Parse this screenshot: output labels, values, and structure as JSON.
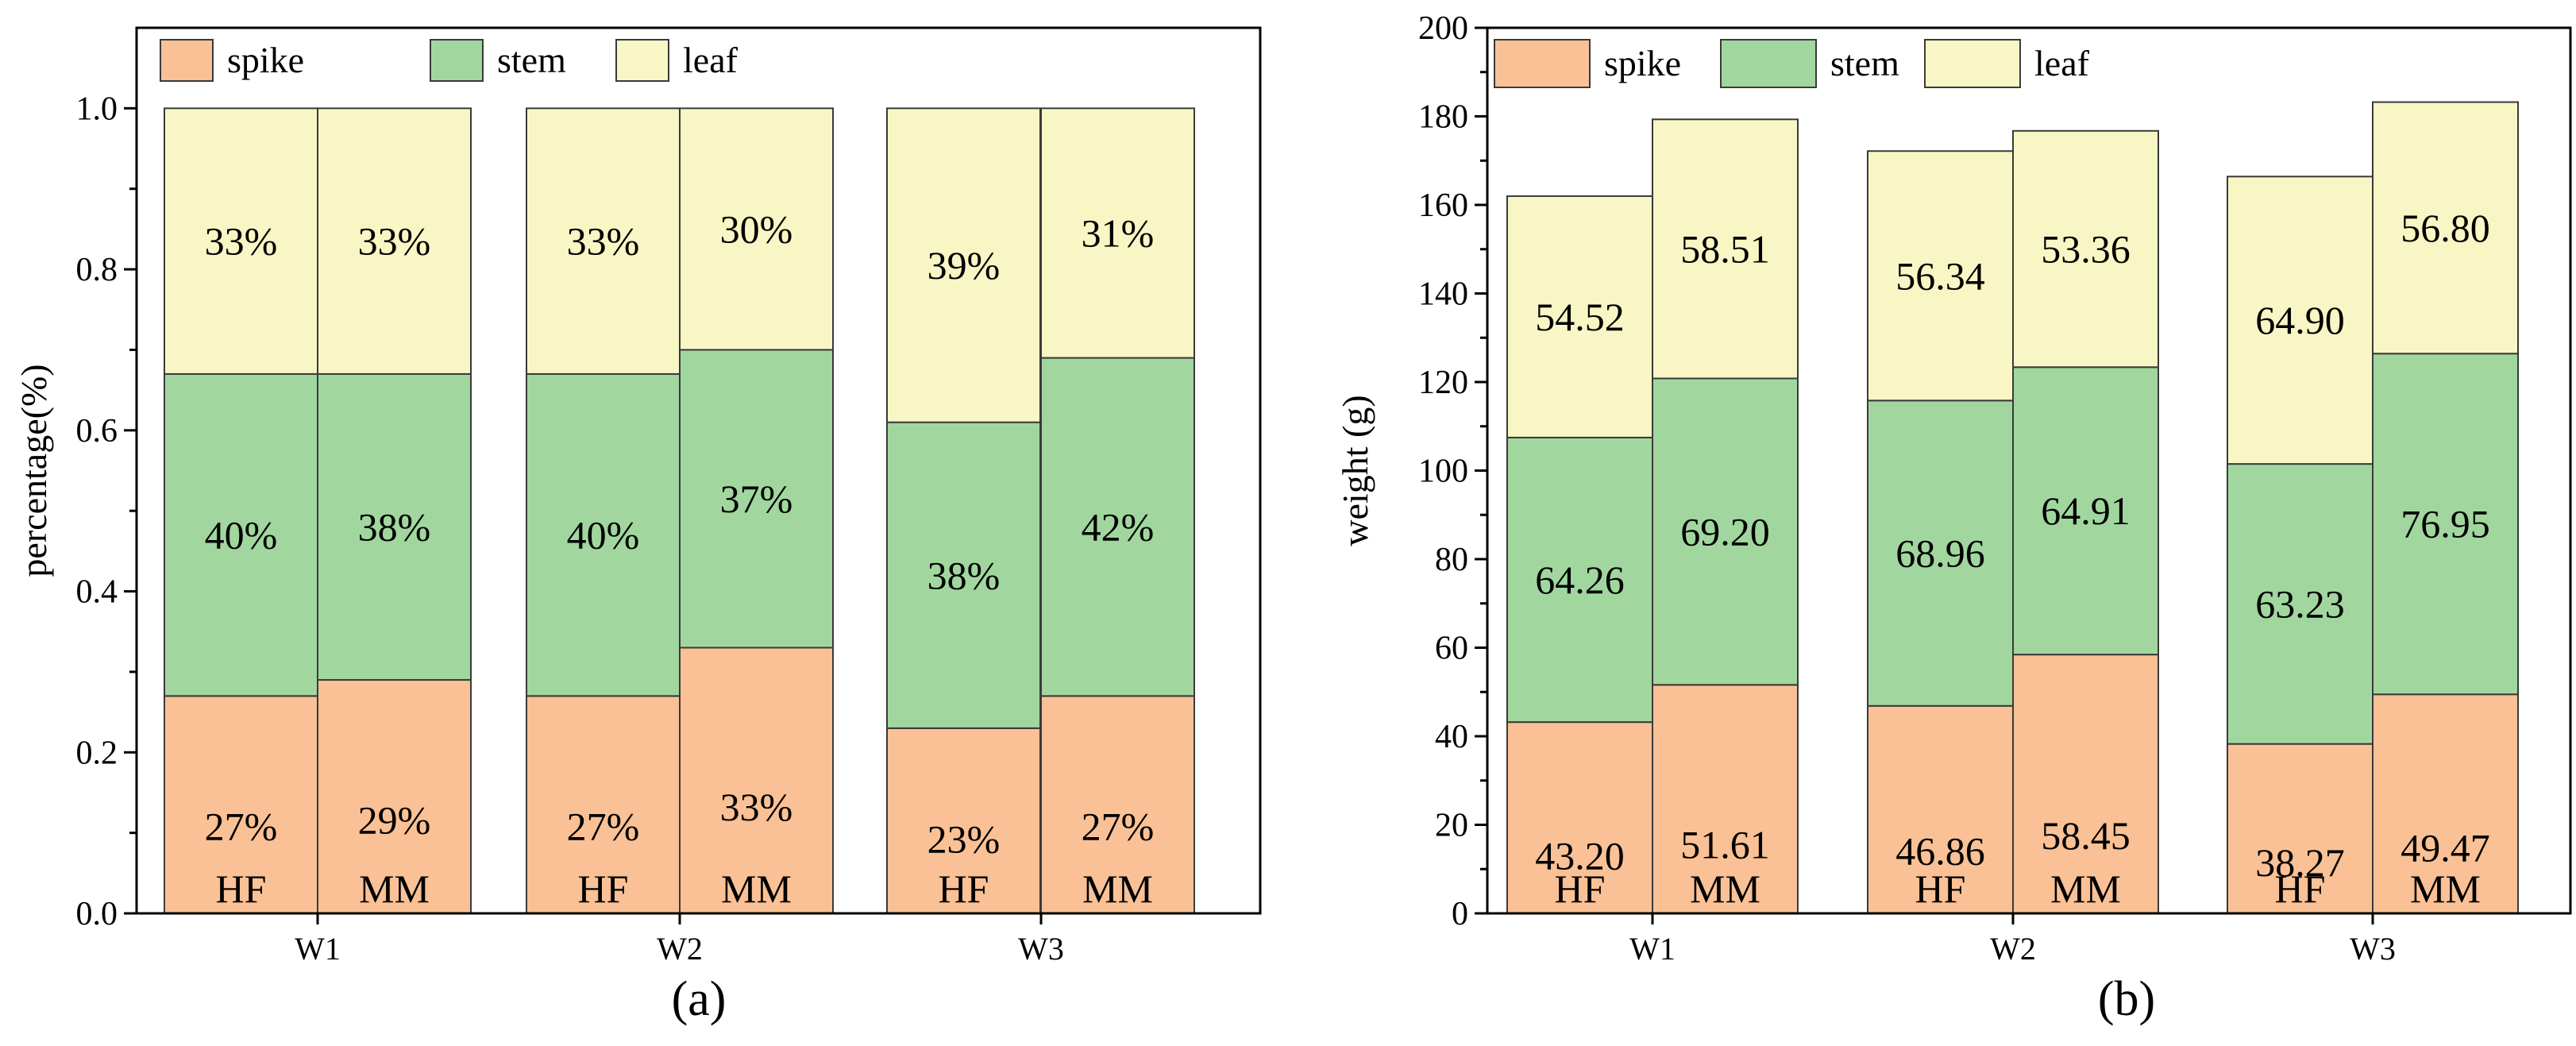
{
  "colors": {
    "spike": "#F9C195",
    "stem": "#A1D79F",
    "leaf": "#F8F6C4",
    "axis": "#000000",
    "bar_edge": "#3a3a3a"
  },
  "chart_data": [
    {
      "type": "bar",
      "stacked": true,
      "panel_label": "(a)",
      "groups": [
        "W1",
        "W2",
        "W3"
      ],
      "bar_names": [
        "HF",
        "MM",
        "HF",
        "MM",
        "HF",
        "MM"
      ],
      "bar_groups": [
        "W1",
        "W1",
        "W2",
        "W2",
        "W3",
        "W3"
      ],
      "series": [
        {
          "name": "spike",
          "color_key": "spike",
          "values": [
            0.27,
            0.29,
            0.27,
            0.33,
            0.23,
            0.27
          ],
          "labels": [
            "27%",
            "29%",
            "27%",
            "33%",
            "23%",
            "27%"
          ]
        },
        {
          "name": "stem",
          "color_key": "stem",
          "values": [
            0.4,
            0.38,
            0.4,
            0.37,
            0.38,
            0.42
          ],
          "labels": [
            "40%",
            "38%",
            "40%",
            "37%",
            "38%",
            "42%"
          ]
        },
        {
          "name": "leaf",
          "color_key": "leaf",
          "values": [
            0.33,
            0.33,
            0.33,
            0.3,
            0.39,
            0.31
          ],
          "labels": [
            "33%",
            "33%",
            "33%",
            "30%",
            "39%",
            "31%"
          ]
        }
      ],
      "ylabel": "percentage(%)",
      "xlabel": "",
      "ylim": [
        0,
        1.1
      ],
      "yticks": [
        0.0,
        0.2,
        0.4,
        0.6,
        0.8,
        1.0
      ],
      "ytick_labels": [
        "0.0",
        "0.2",
        "0.4",
        "0.6",
        "0.8",
        "1.0"
      ],
      "legend": {
        "position": "top-left",
        "entries": [
          "spike",
          "stem",
          "leaf"
        ]
      }
    },
    {
      "type": "bar",
      "stacked": true,
      "panel_label": "(b)",
      "groups": [
        "W1",
        "W2",
        "W3"
      ],
      "bar_names": [
        "HF",
        "MM",
        "HF",
        "MM",
        "HF",
        "MM"
      ],
      "bar_groups": [
        "W1",
        "W1",
        "W2",
        "W2",
        "W3",
        "W3"
      ],
      "series": [
        {
          "name": "spike",
          "color_key": "spike",
          "values": [
            43.2,
            51.61,
            46.86,
            58.45,
            38.27,
            49.47
          ],
          "labels": [
            "43.20",
            "51.61",
            "46.86",
            "58.45",
            "38.27",
            "49.47"
          ]
        },
        {
          "name": "stem",
          "color_key": "stem",
          "values": [
            64.26,
            69.2,
            68.96,
            64.91,
            63.23,
            76.95
          ],
          "labels": [
            "64.26",
            "69.20",
            "68.96",
            "64.91",
            "63.23",
            "76.95"
          ]
        },
        {
          "name": "leaf",
          "color_key": "leaf",
          "values": [
            54.52,
            58.51,
            56.34,
            53.36,
            64.9,
            56.8
          ],
          "labels": [
            "54.52",
            "58.51",
            "56.34",
            "53.36",
            "64.90",
            "56.80"
          ]
        }
      ],
      "ylabel": "weight (g)",
      "xlabel": "",
      "ylim": [
        0,
        200
      ],
      "yticks": [
        0,
        20,
        40,
        60,
        80,
        100,
        120,
        140,
        160,
        180,
        200
      ],
      "ytick_labels": [
        "0",
        "20",
        "40",
        "60",
        "80",
        "100",
        "120",
        "140",
        "160",
        "180",
        "200"
      ],
      "legend": {
        "position": "top-left",
        "entries": [
          "spike",
          "stem",
          "leaf"
        ]
      }
    }
  ]
}
